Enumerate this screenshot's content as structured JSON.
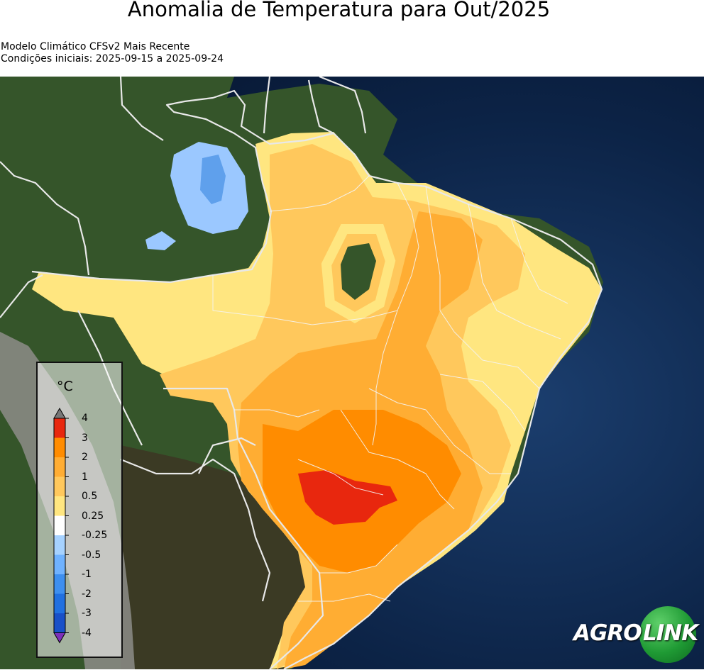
{
  "header": {
    "title": "Anomalia de Temperatura para Out/2025",
    "subtitle_model": "Modelo Climático CFSv2 Mais Recente",
    "subtitle_conditions": "Condições iniciais: 2025-09-15 a 2025-09-24"
  },
  "legend": {
    "unit": "°C",
    "ticks": [
      "4",
      "3",
      "2",
      "1",
      "0.5",
      "0.25",
      "-0.25",
      "-0.5",
      "-1",
      "-2",
      "-3",
      "-4"
    ],
    "colors": [
      "#e8270e",
      "#ff8c00",
      "#ffad33",
      "#ffc85c",
      "#ffe680",
      "#ffffff",
      "#a6d2ff",
      "#6fb2ff",
      "#3d8fef",
      "#2070e0",
      "#1850c8"
    ],
    "over_color": "#777777",
    "under_color": "#7b2fb8"
  },
  "map": {
    "colors": {
      "ocean": "#0b1f3f",
      "land_green": "#35552a",
      "land_dark": "#3a3b22",
      "land_andes": "#8a8a86",
      "borders": "#e8e8e8"
    }
  },
  "logo": {
    "part1": "AGRO",
    "part2": "LINK"
  }
}
